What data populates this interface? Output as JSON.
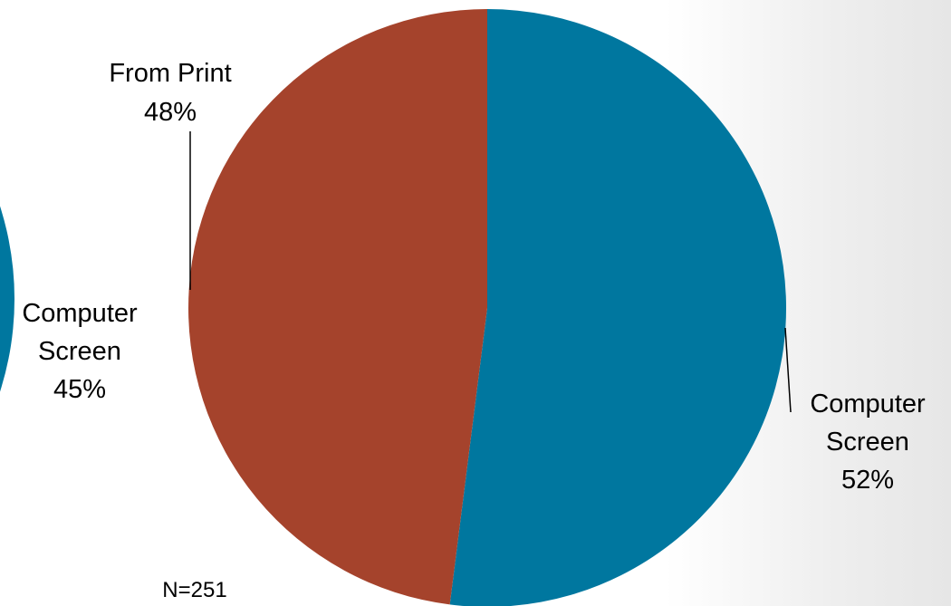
{
  "chart_data": [
    {
      "type": "pie",
      "slices": [
        {
          "label": "Computer Screen",
          "percent_label": "45%",
          "value": 45
        }
      ],
      "colors": [
        "#00779f"
      ]
    },
    {
      "type": "pie",
      "slices": [
        {
          "label": "Computer Screen",
          "percent_label": "52%",
          "value": 52
        },
        {
          "label": "From Print",
          "percent_label": "48%",
          "value": 48
        }
      ],
      "colors": [
        "#00779f",
        "#a5432c"
      ],
      "note": "N=251"
    }
  ]
}
